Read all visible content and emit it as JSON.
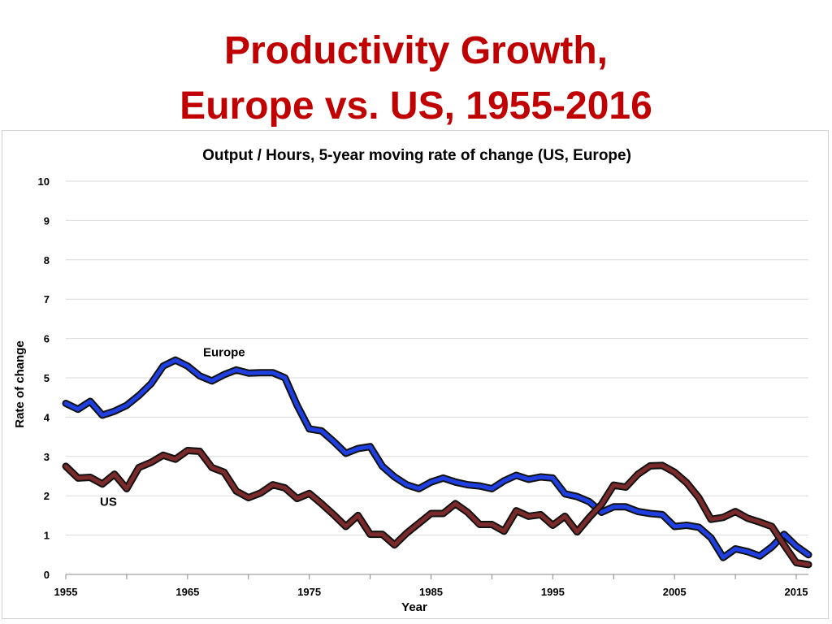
{
  "slide": {
    "title_line1": "Productivity Growth,",
    "title_line2": "Europe vs. US, 1955-2016",
    "title_color": "#c00000"
  },
  "chart_data": {
    "type": "line",
    "title": "Output / Hours, 5-year moving rate of change (US, Europe)",
    "xlabel": "Year",
    "ylabel": "Rate of change",
    "xlim": [
      1955,
      2016
    ],
    "ylim": [
      0,
      10
    ],
    "grid": true,
    "x_ticks": [
      "1955",
      "1965",
      "1975",
      "1985",
      "1995",
      "2005",
      "2015"
    ],
    "y_ticks": [
      "0",
      "1",
      "2",
      "3",
      "4",
      "5",
      "6",
      "7",
      "8",
      "9",
      "10"
    ],
    "x": [
      1955,
      1956,
      1957,
      1958,
      1959,
      1960,
      1961,
      1962,
      1963,
      1964,
      1965,
      1966,
      1967,
      1968,
      1969,
      1970,
      1971,
      1972,
      1973,
      1974,
      1975,
      1976,
      1977,
      1978,
      1979,
      1980,
      1981,
      1982,
      1983,
      1984,
      1985,
      1986,
      1987,
      1988,
      1989,
      1990,
      1991,
      1992,
      1993,
      1994,
      1995,
      1996,
      1997,
      1998,
      1999,
      2000,
      2001,
      2002,
      2003,
      2004,
      2005,
      2006,
      2007,
      2008,
      2009,
      2010,
      2011,
      2012,
      2013,
      2014,
      2015,
      2016
    ],
    "series": [
      {
        "name": "Europe",
        "color": "#1f3fe0",
        "values": [
          4.35,
          4.2,
          4.4,
          4.05,
          4.15,
          4.3,
          4.55,
          4.85,
          5.3,
          5.45,
          5.3,
          5.05,
          4.92,
          5.08,
          5.2,
          5.12,
          5.13,
          5.13,
          5.0,
          4.3,
          3.7,
          3.65,
          3.38,
          3.08,
          3.2,
          3.25,
          2.75,
          2.48,
          2.28,
          2.18,
          2.35,
          2.45,
          2.35,
          2.28,
          2.25,
          2.18,
          2.38,
          2.52,
          2.42,
          2.48,
          2.45,
          2.05,
          1.98,
          1.85,
          1.58,
          1.72,
          1.72,
          1.6,
          1.55,
          1.52,
          1.22,
          1.25,
          1.2,
          0.93,
          0.43,
          0.65,
          0.58,
          0.47,
          0.7,
          1.02,
          0.72,
          0.5
        ]
      },
      {
        "name": "US",
        "color": "#7a2a2a",
        "values": [
          2.75,
          2.45,
          2.47,
          2.3,
          2.55,
          2.18,
          2.72,
          2.85,
          3.03,
          2.93,
          3.15,
          3.13,
          2.72,
          2.6,
          2.12,
          1.95,
          2.07,
          2.28,
          2.2,
          1.93,
          2.06,
          1.8,
          1.52,
          1.22,
          1.5,
          1.02,
          1.02,
          0.75,
          1.05,
          1.3,
          1.55,
          1.55,
          1.8,
          1.58,
          1.27,
          1.27,
          1.1,
          1.62,
          1.48,
          1.52,
          1.25,
          1.48,
          1.08,
          1.45,
          1.78,
          2.27,
          2.22,
          2.55,
          2.76,
          2.77,
          2.6,
          2.33,
          1.95,
          1.4,
          1.45,
          1.6,
          1.43,
          1.33,
          1.22,
          0.75,
          0.3,
          0.25
        ]
      }
    ],
    "annotations": [
      {
        "text": "Europe",
        "x": 1968,
        "y": 5.55
      },
      {
        "text": "US",
        "x": 1958.5,
        "y": 1.75
      }
    ]
  }
}
